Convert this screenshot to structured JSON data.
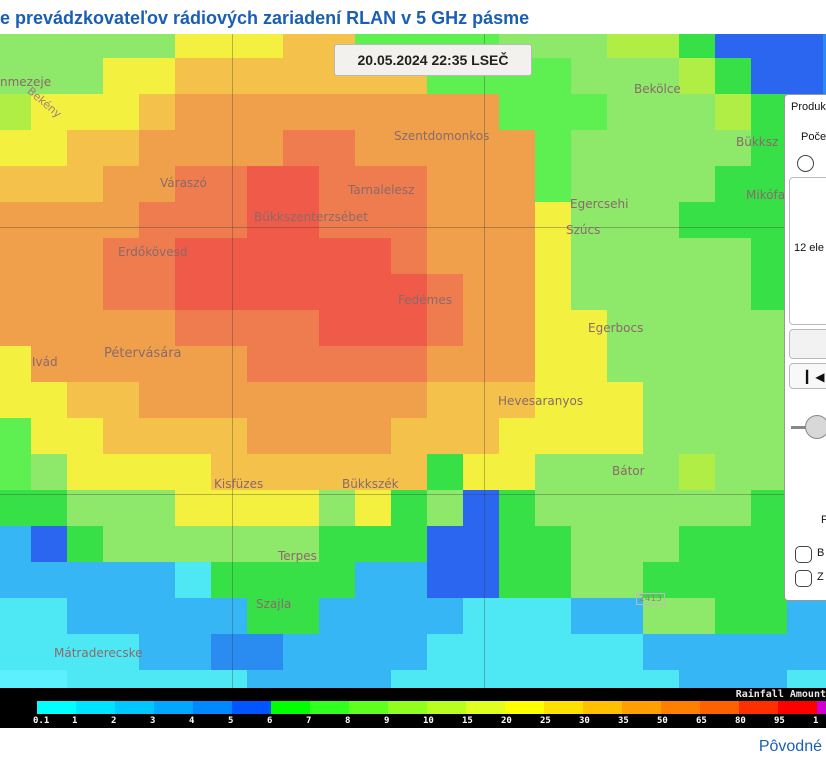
{
  "title": "e prevádzkovateľov rádiových zariadení RLAN v 5 GHz pásme",
  "timestamp": "20.05.2024 22:35 LSEČ",
  "colors": {
    "title": "#1a5fb4",
    "rain_scale": [
      "#00ffff",
      "#00e5ff",
      "#00c8ff",
      "#00a8ff",
      "#0088ff",
      "#0055ff",
      "#00ff00",
      "#30ff20",
      "#60ff20",
      "#90ff20",
      "#b8ff20",
      "#e0ff20",
      "#ffff00",
      "#ffe000",
      "#ffc000",
      "#ffa000",
      "#ff8000",
      "#ff6000",
      "#ff3000",
      "#ff0000",
      "#d000d0",
      "#ff00ff"
    ]
  },
  "legend": {
    "title": "Rainfall Amount",
    "labels": [
      "0.1",
      "1",
      "2",
      "3",
      "4",
      "5",
      "6",
      "7",
      "8",
      "9",
      "10",
      "15",
      "20",
      "25",
      "30",
      "35",
      "50",
      "65",
      "80",
      "95",
      "1"
    ]
  },
  "places": [
    {
      "name": "nmezeje"
    },
    {
      "name": "Bekény"
    },
    {
      "name": "Szentdomonkos"
    },
    {
      "name": "Bekölce"
    },
    {
      "name": "Bükksz"
    },
    {
      "name": "Mikófa"
    },
    {
      "name": "Váraszó"
    },
    {
      "name": "Tarnalelesz"
    },
    {
      "name": "Bükkszenterzsébet"
    },
    {
      "name": "Egercsehi"
    },
    {
      "name": "Szúcs"
    },
    {
      "name": "Erdőkövesd"
    },
    {
      "name": "Fedémes"
    },
    {
      "name": "Egerbocs"
    },
    {
      "name": "Ivád"
    },
    {
      "name": "Pétervására"
    },
    {
      "name": "Hevesaranyos"
    },
    {
      "name": "Bátor"
    },
    {
      "name": "Kisfüzes"
    },
    {
      "name": "Bükkszék"
    },
    {
      "name": "Terpes"
    },
    {
      "name": "Szajla"
    },
    {
      "name": "2413"
    },
    {
      "name": "Mátraderecske"
    }
  ],
  "panel": {
    "produkt_label": "Produk",
    "pocet_label": "Poče",
    "list_text": "12 ele",
    "nav_icon": "skip-to-start-icon",
    "pr_label": "Pr",
    "option1_label": "B",
    "option2_label": "Z"
  },
  "footer": "Pôvodné"
}
